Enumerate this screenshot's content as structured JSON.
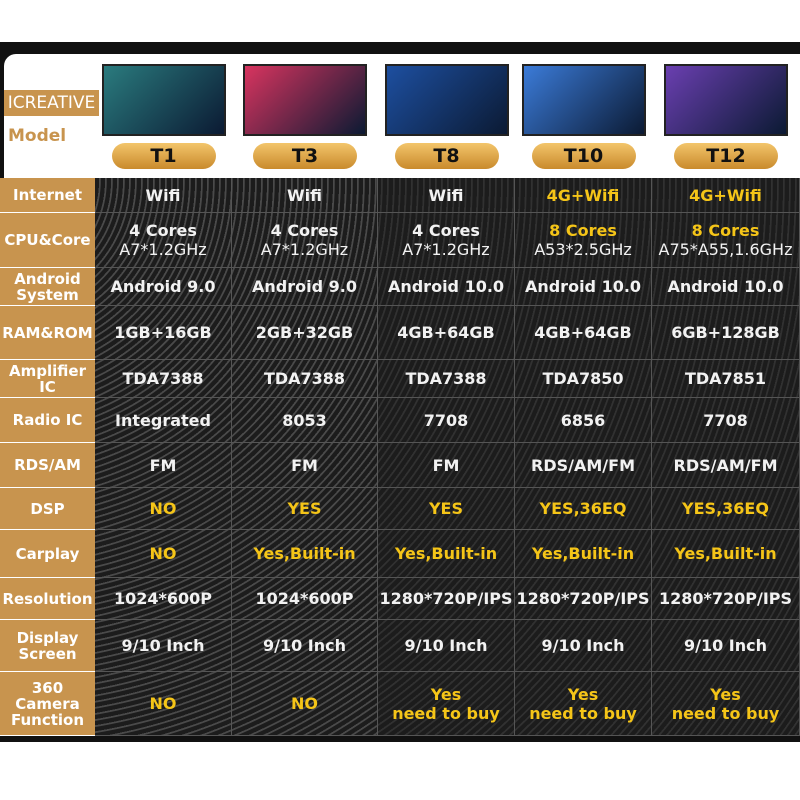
{
  "header": {
    "brand": "ICREATIVE",
    "model_label": "Model",
    "models": [
      "T1",
      "T3",
      "T8",
      "T10",
      "T12"
    ]
  },
  "table": {
    "rows": [
      {
        "label": [
          "Internet"
        ],
        "cells": [
          [
            "Wifi"
          ],
          [
            "Wifi"
          ],
          [
            "Wifi"
          ],
          [
            "4G+Wifi"
          ],
          [
            "4G+Wifi"
          ]
        ]
      },
      {
        "label": [
          "CPU&Core"
        ],
        "cells": [
          [
            "4 Cores",
            "A7*1.2GHz"
          ],
          [
            "4 Cores",
            "A7*1.2GHz"
          ],
          [
            "4 Cores",
            "A7*1.2GHz"
          ],
          [
            "8 Cores",
            "A53*2.5GHz"
          ],
          [
            "8 Cores",
            "A75*A55,1.6GHz"
          ]
        ]
      },
      {
        "label": [
          "Android",
          "System"
        ],
        "cells": [
          [
            "Android 9.0"
          ],
          [
            "Android 9.0"
          ],
          [
            "Android 10.0"
          ],
          [
            "Android 10.0"
          ],
          [
            "Android 10.0"
          ]
        ]
      },
      {
        "label": [
          "RAM&ROM"
        ],
        "cells": [
          [
            "1GB+16GB"
          ],
          [
            "2GB+32GB"
          ],
          [
            "4GB+64GB"
          ],
          [
            "4GB+64GB"
          ],
          [
            "6GB+128GB"
          ]
        ]
      },
      {
        "label": [
          "Amplifier IC"
        ],
        "cells": [
          [
            "TDA7388"
          ],
          [
            "TDA7388"
          ],
          [
            "TDA7388"
          ],
          [
            "TDA7850"
          ],
          [
            "TDA7851"
          ]
        ]
      },
      {
        "label": [
          "Radio IC"
        ],
        "cells": [
          [
            "Integrated"
          ],
          [
            "8053"
          ],
          [
            "7708"
          ],
          [
            "6856"
          ],
          [
            "7708"
          ]
        ]
      },
      {
        "label": [
          "RDS/AM"
        ],
        "cells": [
          [
            "FM"
          ],
          [
            "FM"
          ],
          [
            "FM"
          ],
          [
            "RDS/AM/FM"
          ],
          [
            "RDS/AM/FM"
          ]
        ]
      },
      {
        "label": [
          "DSP"
        ],
        "cells": [
          [
            "NO"
          ],
          [
            "YES"
          ],
          [
            "YES"
          ],
          [
            "YES,36EQ"
          ],
          [
            "YES,36EQ"
          ]
        ]
      },
      {
        "label": [
          "Carplay"
        ],
        "cells": [
          [
            "NO"
          ],
          [
            "Yes,Built-in"
          ],
          [
            "Yes,Built-in"
          ],
          [
            "Yes,Built-in"
          ],
          [
            "Yes,Built-in"
          ]
        ]
      },
      {
        "label": [
          "Resolution"
        ],
        "cells": [
          [
            "1024*600P"
          ],
          [
            "1024*600P"
          ],
          [
            "1280*720P/IPS"
          ],
          [
            "1280*720P/IPS"
          ],
          [
            "1280*720P/IPS"
          ]
        ]
      },
      {
        "label": [
          "Display",
          "Screen"
        ],
        "cells": [
          [
            "9/10 Inch"
          ],
          [
            "9/10 Inch"
          ],
          [
            "9/10 Inch"
          ],
          [
            "9/10 Inch"
          ],
          [
            "9/10 Inch"
          ]
        ]
      },
      {
        "label": [
          "360",
          "Camera",
          "Function"
        ],
        "cells": [
          [
            "NO"
          ],
          [
            "NO"
          ],
          [
            "Yes",
            "need to buy"
          ],
          [
            "Yes",
            "need to buy"
          ],
          [
            "Yes",
            "need to buy"
          ]
        ]
      }
    ]
  }
}
